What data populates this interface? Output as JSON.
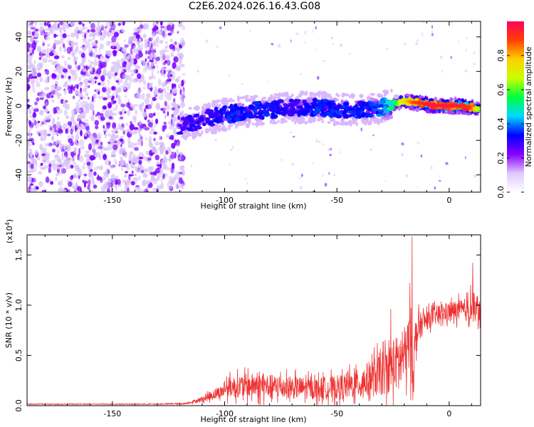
{
  "title": "C2E6.2024.026.16.43.G08",
  "colors": {
    "snr_line": "#ee3333",
    "scatter_purple": "#7a00ff",
    "scatter_light": "#d8c2f8",
    "ridge_cyan": "#00e0e0",
    "ridge_green": "#7fe000",
    "ridge_red": "#ff2020"
  },
  "chart_data": [
    {
      "type": "heatmap",
      "xlabel": "Height of straight line (km)",
      "ylabel": "Frequency (Hz)",
      "xlim": [
        -188,
        14
      ],
      "ylim": [
        -50,
        49
      ],
      "xticks": [
        -150,
        -100,
        -50,
        0
      ],
      "yticks": [
        -40,
        -20,
        0,
        20,
        40
      ],
      "colorbar": {
        "label": "Normalized spectral amplitude",
        "range": [
          0.0,
          1.0
        ],
        "ticks": [
          0.0,
          0.2,
          0.4,
          0.6,
          0.8
        ],
        "tick_labels": [
          "0.0",
          "0.2",
          "0.4",
          "0.6",
          "0.8"
        ],
        "colormap": [
          "#ffffff",
          "#e0c8ff",
          "#8800ff",
          "#0000ff",
          "#00d8ff",
          "#00ff40",
          "#c8ff00",
          "#ffd000",
          "#ff4000",
          "#ff0060"
        ]
      },
      "noise_region_x": [
        -188,
        -118
      ],
      "ridge": {
        "x": [
          -120,
          -110,
          -100,
          -90,
          -80,
          -70,
          -60,
          -50,
          -40,
          -30,
          -25,
          -20,
          -15,
          -10,
          -5,
          0,
          5,
          10,
          13
        ],
        "frequency": [
          -12,
          -8,
          -5,
          -3,
          -2,
          -1,
          -1,
          -2,
          -2,
          -1,
          1,
          3,
          2,
          1,
          0,
          0,
          0,
          -1,
          -2
        ],
        "amplitude": [
          0.3,
          0.3,
          0.35,
          0.35,
          0.35,
          0.3,
          0.35,
          0.35,
          0.35,
          0.4,
          0.55,
          0.75,
          0.9,
          0.95,
          0.95,
          0.95,
          0.95,
          0.9,
          0.6
        ]
      }
    },
    {
      "type": "line",
      "xlabel": "Height of straight line (km)",
      "ylabel": "SNR (10 * v/v)",
      "y_multiplier": "(x10",
      "y_multiplier_exp": "4",
      "y_multiplier_close": ")",
      "xlim": [
        -188,
        14
      ],
      "ylim": [
        0,
        17000
      ],
      "xticks": [
        -150,
        -100,
        -50,
        0
      ],
      "yticks": [
        0,
        5000,
        10000,
        15000
      ],
      "ytick_labels": [
        "0.0",
        "0.5",
        "1.0",
        "1.5"
      ],
      "envelope": {
        "x": [
          -188,
          -160,
          -130,
          -118,
          -112,
          -108,
          -104,
          -101,
          -100,
          -90,
          -80,
          -70,
          -60,
          -50,
          -40,
          -35,
          -30,
          -27,
          -25,
          -22,
          -20,
          -18,
          -17,
          -16,
          -15,
          -14,
          -12,
          -10,
          -8,
          -6,
          -4,
          -2,
          0,
          2,
          4,
          6,
          8,
          10,
          11,
          12,
          13
        ],
        "mean": [
          150,
          150,
          150,
          200,
          500,
          800,
          1200,
          1400,
          1800,
          2000,
          1900,
          1800,
          1700,
          1800,
          2200,
          2700,
          3200,
          3600,
          4000,
          4500,
          5000,
          5800,
          6200,
          3500,
          6500,
          7500,
          8200,
          8500,
          8800,
          9000,
          9200,
          9200,
          9300,
          9400,
          9500,
          9400,
          9600,
          9500,
          9800,
          9600,
          9300
        ],
        "spread": [
          60,
          60,
          60,
          100,
          250,
          450,
          700,
          800,
          1200,
          1500,
          1500,
          1400,
          1300,
          1500,
          1800,
          2300,
          2800,
          3000,
          3200,
          3400,
          3500,
          4000,
          4500,
          2500,
          2500,
          2000,
          1500,
          1200,
          1200,
          1200,
          1100,
          1200,
          1200,
          1300,
          1300,
          1400,
          1500,
          1600,
          1800,
          1600,
          1500
        ]
      },
      "peaks": [
        {
          "x": -16.5,
          "y": 16800
        },
        {
          "x": -17.5,
          "y": 12200
        },
        {
          "x": -26.0,
          "y": 9600
        },
        {
          "x": 10.5,
          "y": 14200
        },
        {
          "x": 9.5,
          "y": 12000
        }
      ]
    }
  ]
}
